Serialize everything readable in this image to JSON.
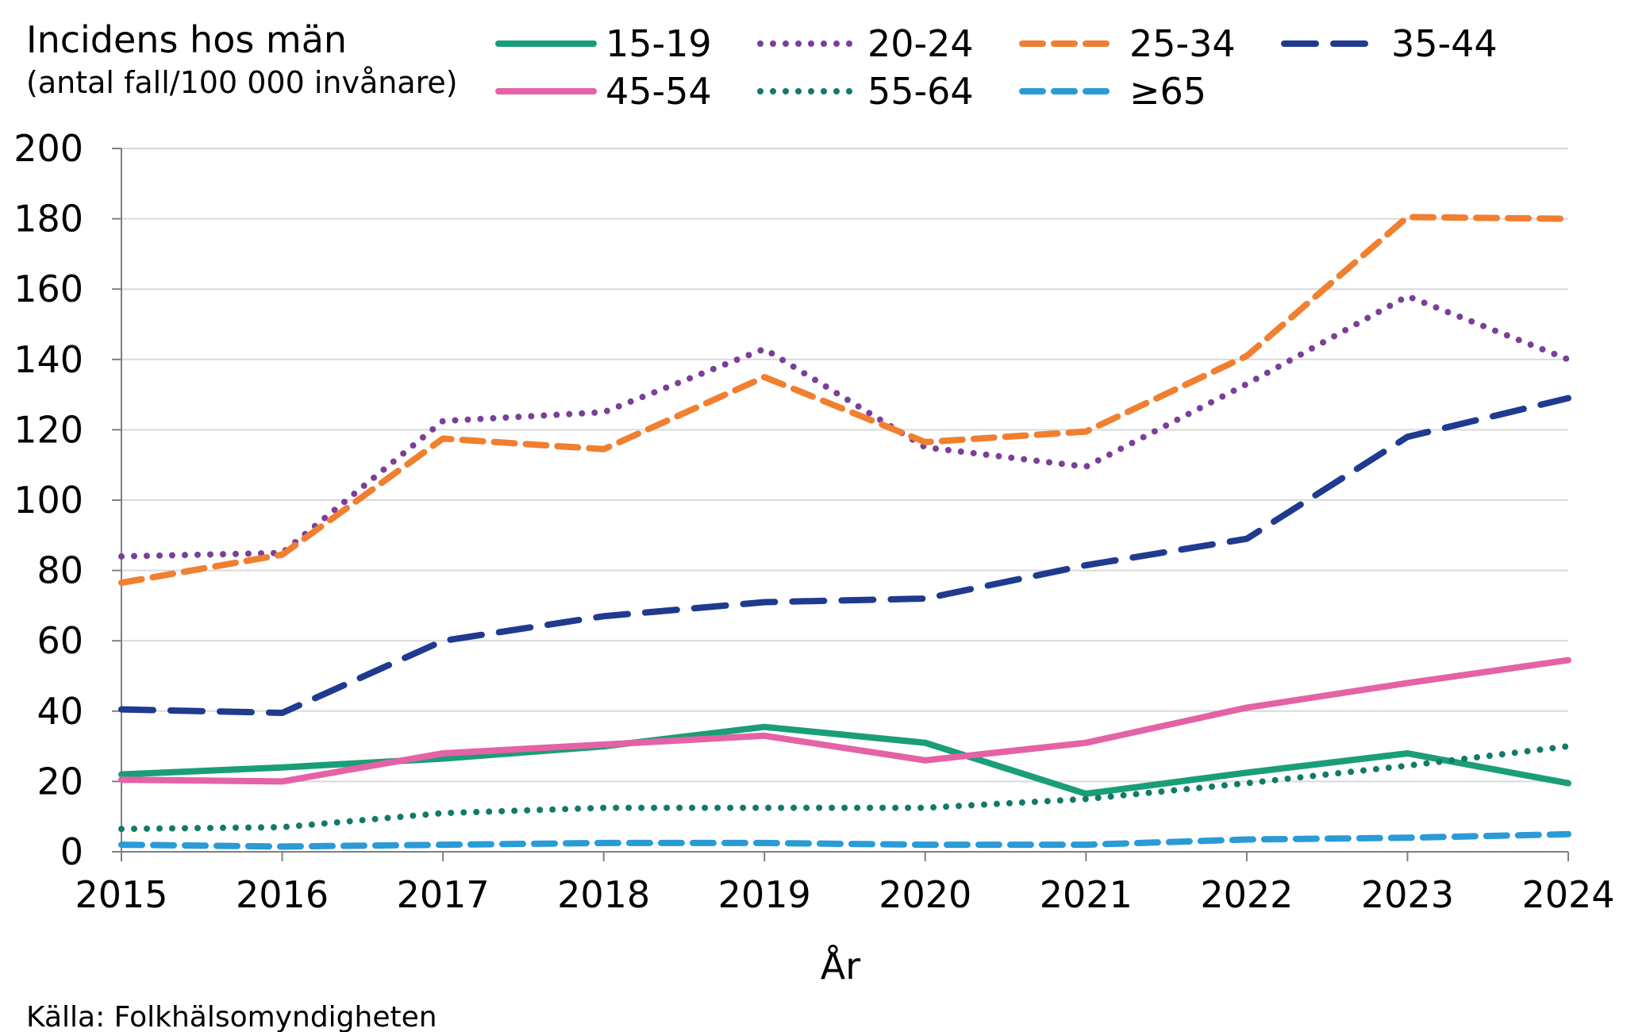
{
  "chart_data": {
    "type": "line",
    "title": "Incidens hos män",
    "subtitle": "(antal fall/100 000 invånare)",
    "xlabel": "År",
    "ylabel": "",
    "source": "Källa: Folkhälsomyndigheten",
    "ylim": [
      0,
      200
    ],
    "yticks": [
      "0",
      "20",
      "40",
      "60",
      "80",
      "100",
      "120",
      "140",
      "160",
      "180",
      "200"
    ],
    "x": [
      "2015",
      "2016",
      "2017",
      "2018",
      "2019",
      "2020",
      "2021",
      "2022",
      "2023",
      "2024"
    ],
    "grid": true,
    "legend_position": "top",
    "series": [
      {
        "name": "15-19",
        "color": "#1a9e77",
        "style": "solid",
        "values": [
          22,
          24,
          26.5,
          30,
          35.5,
          31,
          16.5,
          22.5,
          28,
          19.5
        ]
      },
      {
        "name": "20-24",
        "color": "#7b3f98",
        "style": "dotted",
        "values": [
          84,
          85,
          122.5,
          125,
          143,
          115,
          109.5,
          133,
          158,
          140
        ]
      },
      {
        "name": "25-34",
        "color": "#f07f30",
        "style": "dashed",
        "values": [
          76.5,
          84.5,
          117.5,
          114.5,
          135,
          116.5,
          119.5,
          141,
          180.5,
          180
        ]
      },
      {
        "name": "35-44",
        "color": "#1f3a8f",
        "style": "longdash",
        "values": [
          40.5,
          39.5,
          60,
          67,
          71,
          72,
          81.5,
          89,
          118,
          129
        ]
      },
      {
        "name": "45-54",
        "color": "#e462a6",
        "style": "solid",
        "values": [
          20.5,
          20,
          28,
          30.5,
          33,
          26,
          31,
          41,
          48,
          54.5
        ]
      },
      {
        "name": "55-64",
        "color": "#127a6a",
        "style": "dotted",
        "values": [
          6.5,
          7,
          11,
          12.5,
          12.5,
          12.5,
          15,
          19.5,
          24.5,
          30
        ]
      },
      {
        "name": "≥65",
        "color": "#2a9bd6",
        "style": "dashed",
        "values": [
          2,
          1.5,
          2,
          2.5,
          2.5,
          2,
          2,
          3.5,
          4,
          5
        ]
      }
    ]
  }
}
